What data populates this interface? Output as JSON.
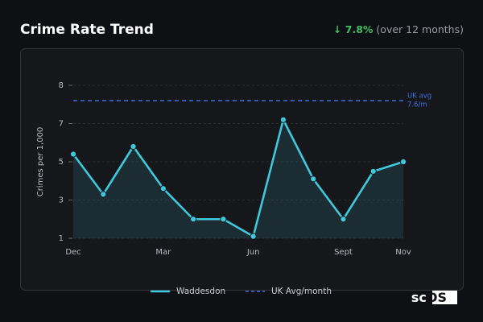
{
  "chart_data": {
    "type": "line",
    "title": "Crime Rate Trend",
    "change": "↓ 7.8%",
    "change_note": "(over 12 months)",
    "y_label": "Crimes per 1,000",
    "categories": [
      "Dec",
      null,
      null,
      "Mar",
      null,
      null,
      "Jun",
      null,
      null,
      "Sept",
      null,
      "Nov"
    ],
    "series": [
      {
        "name": "Waddesdon",
        "color": "#3fc8dc",
        "values": [
          5.4,
          3.3,
          5.8,
          3.6,
          2.0,
          2.0,
          1.1,
          7.1,
          4.1,
          2.0,
          4.5,
          5.0
        ]
      }
    ],
    "reference": {
      "name": "UK Avg/month",
      "color": "#3b6fe0",
      "value": 7.6,
      "annotation": [
        "UK avg",
        "7.6/m"
      ]
    },
    "ylim": [
      1,
      8
    ],
    "yticks": [
      1,
      3,
      5,
      7,
      8
    ],
    "grid": true,
    "brand": [
      "sc",
      "OS"
    ]
  }
}
